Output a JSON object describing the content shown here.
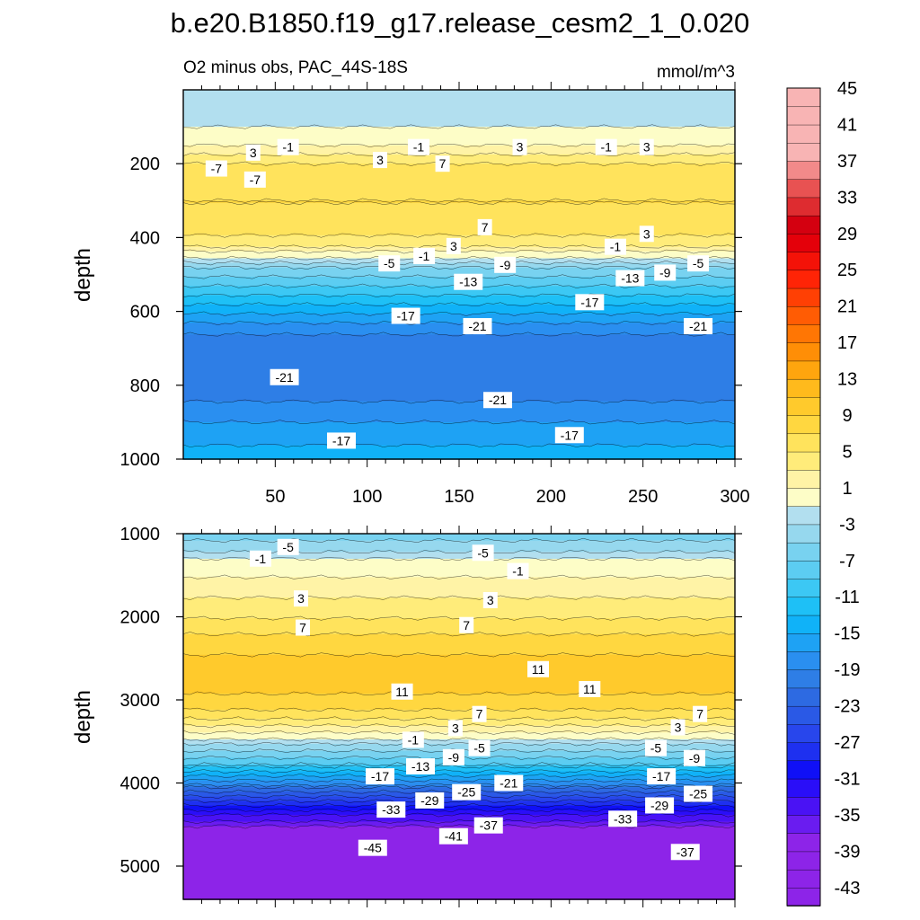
{
  "title": "b.e20.B1850.f19_g17.release_cesm2_1_0.020",
  "chart_data": {
    "type": "heatmap",
    "subtitle_left": "O2 minus obs, PAC_44S-18S",
    "units": "mmol/m^3",
    "xlim": [
      0,
      300
    ],
    "colorbar": {
      "levels": [
        -45,
        -43,
        -41,
        -39,
        -37,
        -35,
        -33,
        -31,
        -29,
        -27,
        -25,
        -23,
        -21,
        -19,
        -17,
        -15,
        -13,
        -11,
        -9,
        -7,
        -5,
        -3,
        -1,
        1,
        3,
        5,
        7,
        9,
        11,
        13,
        15,
        17,
        19,
        21,
        23,
        25,
        27,
        29,
        31,
        33,
        35,
        37,
        39,
        41,
        43,
        45
      ],
      "tick_labels": [
        "45",
        "41",
        "37",
        "33",
        "29",
        "25",
        "21",
        "17",
        "13",
        "9",
        "5",
        "1",
        "-3",
        "-7",
        "-11",
        "-15",
        "-19",
        "-23",
        "-27",
        "-31",
        "-35",
        "-39",
        "-43"
      ]
    },
    "panels": [
      {
        "name": "upper",
        "ylabel": "depth",
        "ylim": [
          0,
          1000
        ],
        "y_ticks": [
          200,
          400,
          600,
          800,
          1000
        ],
        "y_tick_labels": [
          "200",
          "400",
          "600",
          "800",
          "1000"
        ],
        "x_ticks": [
          50,
          100,
          150,
          200,
          250,
          300
        ],
        "x_tick_labels": [
          "50",
          "100",
          "150",
          "200",
          "250",
          "300"
        ],
        "profile": [
          [
            0,
            -3
          ],
          [
            60,
            -2
          ],
          [
            100,
            -1
          ],
          [
            150,
            1
          ],
          [
            200,
            5
          ],
          [
            300,
            7
          ],
          [
            380,
            6
          ],
          [
            420,
            3
          ],
          [
            450,
            -1
          ],
          [
            480,
            -5
          ],
          [
            530,
            -9
          ],
          [
            580,
            -13
          ],
          [
            640,
            -18
          ],
          [
            700,
            -21
          ],
          [
            780,
            -21
          ],
          [
            840,
            -19
          ],
          [
            900,
            -17
          ],
          [
            960,
            -15
          ],
          [
            1000,
            -14
          ]
        ],
        "contour_labels": [
          {
            "text": "-1",
            "x": 57,
            "y": 155
          },
          {
            "text": "3",
            "x": 38,
            "y": 170
          },
          {
            "text": "-7",
            "x": 18,
            "y": 213
          },
          {
            "text": "-7",
            "x": 39,
            "y": 243
          },
          {
            "text": "3",
            "x": 107,
            "y": 190
          },
          {
            "text": "-1",
            "x": 128,
            "y": 155
          },
          {
            "text": "7",
            "x": 141,
            "y": 200
          },
          {
            "text": "3",
            "x": 183,
            "y": 155
          },
          {
            "text": "-1",
            "x": 230,
            "y": 155
          },
          {
            "text": "3",
            "x": 252,
            "y": 155
          },
          {
            "text": "7",
            "x": 164,
            "y": 372
          },
          {
            "text": "3",
            "x": 147,
            "y": 423
          },
          {
            "text": "-1",
            "x": 131,
            "y": 450
          },
          {
            "text": "-5",
            "x": 112,
            "y": 470
          },
          {
            "text": "-9",
            "x": 175,
            "y": 474
          },
          {
            "text": "-13",
            "x": 155,
            "y": 520
          },
          {
            "text": "-17",
            "x": 121,
            "y": 612
          },
          {
            "text": "-21",
            "x": 160,
            "y": 640
          },
          {
            "text": "-21",
            "x": 55,
            "y": 778
          },
          {
            "text": "-21",
            "x": 171,
            "y": 840
          },
          {
            "text": "-17",
            "x": 86,
            "y": 950
          },
          {
            "text": "-17",
            "x": 210,
            "y": 935
          },
          {
            "text": "-17",
            "x": 221,
            "y": 575
          },
          {
            "text": "-13",
            "x": 243,
            "y": 510
          },
          {
            "text": "-9",
            "x": 262,
            "y": 495
          },
          {
            "text": "-5",
            "x": 280,
            "y": 470
          },
          {
            "text": "-1",
            "x": 235,
            "y": 425
          },
          {
            "text": "3",
            "x": 252,
            "y": 390
          },
          {
            "text": "-21",
            "x": 280,
            "y": 640
          }
        ]
      },
      {
        "name": "lower",
        "ylabel": "depth",
        "ylim": [
          1000,
          5400
        ],
        "y_ticks": [
          1000,
          2000,
          3000,
          4000,
          5000
        ],
        "y_tick_labels": [
          "1000",
          "2000",
          "3000",
          "4000",
          "5000"
        ],
        "x_ticks": [
          50,
          100,
          150,
          200,
          250,
          300
        ],
        "x_tick_labels": [],
        "profile": [
          [
            1000,
            -6
          ],
          [
            1150,
            -4
          ],
          [
            1300,
            -1
          ],
          [
            1500,
            1
          ],
          [
            1750,
            3
          ],
          [
            2000,
            5
          ],
          [
            2200,
            7
          ],
          [
            2450,
            9
          ],
          [
            2700,
            10
          ],
          [
            2900,
            9
          ],
          [
            3100,
            7
          ],
          [
            3300,
            3
          ],
          [
            3450,
            -1
          ],
          [
            3600,
            -5
          ],
          [
            3750,
            -9
          ],
          [
            3900,
            -15
          ],
          [
            4050,
            -21
          ],
          [
            4200,
            -27
          ],
          [
            4350,
            -32
          ],
          [
            4500,
            -37
          ],
          [
            4650,
            -42
          ],
          [
            4800,
            -45
          ],
          [
            5400,
            -45
          ]
        ],
        "contour_labels": [
          {
            "text": "-5",
            "x": 57,
            "y": 1160
          },
          {
            "text": "-1",
            "x": 42,
            "y": 1300
          },
          {
            "text": "-5",
            "x": 163,
            "y": 1230
          },
          {
            "text": "-1",
            "x": 182,
            "y": 1450
          },
          {
            "text": "3",
            "x": 64,
            "y": 1780
          },
          {
            "text": "3",
            "x": 167,
            "y": 1800
          },
          {
            "text": "7",
            "x": 65,
            "y": 2130
          },
          {
            "text": "7",
            "x": 154,
            "y": 2100
          },
          {
            "text": "11",
            "x": 193,
            "y": 2630
          },
          {
            "text": "11",
            "x": 119,
            "y": 2900
          },
          {
            "text": "11",
            "x": 221,
            "y": 2870
          },
          {
            "text": "7",
            "x": 161,
            "y": 3170
          },
          {
            "text": "3",
            "x": 148,
            "y": 3340
          },
          {
            "text": "-1",
            "x": 125,
            "y": 3480
          },
          {
            "text": "-5",
            "x": 161,
            "y": 3580
          },
          {
            "text": "-9",
            "x": 147,
            "y": 3690
          },
          {
            "text": "-13",
            "x": 129,
            "y": 3800
          },
          {
            "text": "-17",
            "x": 107,
            "y": 3920
          },
          {
            "text": "-21",
            "x": 177,
            "y": 4000
          },
          {
            "text": "-25",
            "x": 154,
            "y": 4110
          },
          {
            "text": "-29",
            "x": 134,
            "y": 4210
          },
          {
            "text": "-33",
            "x": 113,
            "y": 4320
          },
          {
            "text": "-37",
            "x": 166,
            "y": 4510
          },
          {
            "text": "-41",
            "x": 147,
            "y": 4640
          },
          {
            "text": "-45",
            "x": 103,
            "y": 4780
          },
          {
            "text": "7",
            "x": 281,
            "y": 3170
          },
          {
            "text": "3",
            "x": 269,
            "y": 3330
          },
          {
            "text": "-5",
            "x": 257,
            "y": 3580
          },
          {
            "text": "-9",
            "x": 278,
            "y": 3700
          },
          {
            "text": "-17",
            "x": 260,
            "y": 3920
          },
          {
            "text": "-25",
            "x": 280,
            "y": 4130
          },
          {
            "text": "-29",
            "x": 259,
            "y": 4270
          },
          {
            "text": "-33",
            "x": 239,
            "y": 4430
          },
          {
            "text": "-37",
            "x": 273,
            "y": 4830
          }
        ]
      }
    ]
  }
}
